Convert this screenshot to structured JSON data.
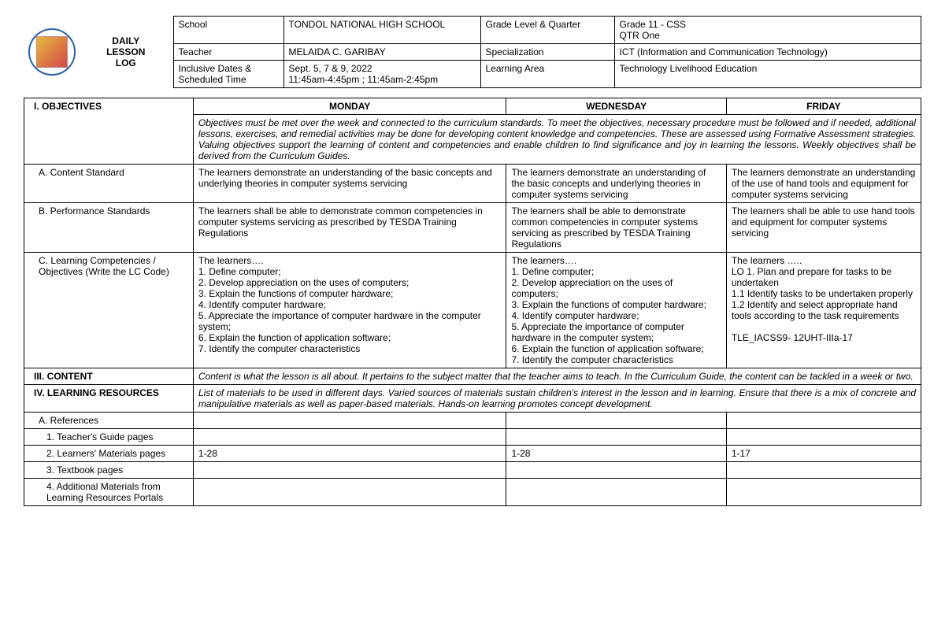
{
  "header": {
    "dll_line1": "DAILY",
    "dll_line2": "LESSON",
    "dll_line3": "LOG",
    "rows": [
      {
        "l1": "School",
        "v1": "TONDOL NATIONAL HIGH SCHOOL",
        "l2": "Grade Level & Quarter",
        "v2": "Grade 11 - CSS\nQTR One"
      },
      {
        "l1": "Teacher",
        "v1": "MELAIDA C. GARIBAY",
        "l2": "Specialization",
        "v2": "ICT (Information and Communication Technology)"
      },
      {
        "l1": "Inclusive Dates & Scheduled Time",
        "v1": "Sept. 5, 7 & 9, 2022\n11:45am-4:45pm ; 11:45am-2:45pm",
        "l2": "Learning Area",
        "v2": "Technology Livelihood Education"
      }
    ]
  },
  "days": {
    "mon": "MONDAY",
    "wed": "WEDNESDAY",
    "fri": "FRIDAY"
  },
  "sections": {
    "objectives": {
      "label": "I.    OBJECTIVES",
      "note": "Objectives must be met over the week and connected to the curriculum standards. To meet the objectives, necessary procedure must be followed and if needed, additional lessons, exercises, and remedial activities may be done for developing content knowledge and competencies. These are assessed using Formative Assessment strategies. Valuing objectives support the learning of content and competencies and enable children to find significance and joy in learning the lessons. Weekly objectives shall be derived from the Curriculum Guides."
    },
    "contentStd": {
      "label": "A. Content Standard",
      "mon": "The learners demonstrate an understanding of the basic concepts and underlying theories in computer systems servicing",
      "wed": "The learners demonstrate an understanding of the basic concepts and underlying theories in computer systems servicing",
      "fri": "The learners demonstrate an understanding of the use of hand tools and equipment for computer systems servicing"
    },
    "perfStd": {
      "label": "B. Performance Standards",
      "mon": "The learners shall be able to demonstrate common competencies in computer systems servicing as prescribed by TESDA Training Regulations",
      "wed": "The learners shall be able to demonstrate common competencies in computer systems servicing as prescribed by TESDA Training Regulations",
      "fri": "The learners shall be able to use hand tools and equipment for computer systems servicing"
    },
    "learnComp": {
      "label": "C. Learning Competencies / Objectives (Write the LC Code)",
      "mon": "The learners….\n1. Define computer;\n2. Develop appreciation on the uses of computers;\n3. Explain the functions of computer hardware;\n4. Identify computer hardware;\n5. Appreciate the importance of computer hardware in the computer system;\n6. Explain the function of application software;\n7. Identify the computer characteristics",
      "wed": "The learners….\n1. Define computer;\n2. Develop appreciation on the uses of computers;\n3. Explain the functions of computer hardware;\n4. Identify computer hardware;\n5. Appreciate the importance of computer hardware in the computer system;\n6. Explain the function of application software;\n7. Identify the computer characteristics",
      "fri": "The learners …..\nLO 1. Plan and prepare for tasks to be undertaken\n1.1 Identify tasks to be undertaken properly\n1.2 Identify and select appropriate hand tools according to the task requirements\n\nTLE_IACSS9- 12UHT-IIIa-17"
    },
    "content": {
      "label": "III.   CONTENT",
      "note": "Content is what the lesson is all about. It pertains to the subject matter that the teacher aims to teach. In the Curriculum Guide, the content can be tackled in a week or two."
    },
    "resources": {
      "label": "IV.   LEARNING RESOURCES",
      "note": "List of materials to be used in different days. Varied sources of materials sustain children's interest in the lesson and in learning. Ensure that there is a mix of concrete and manipulative materials as well as paper-based materials. Hands-on learning promotes concept development."
    },
    "refs": {
      "label": "A. References"
    },
    "tg": {
      "label": "1. Teacher's Guide pages",
      "mon": "",
      "wed": "",
      "fri": ""
    },
    "lm": {
      "label": "2. Learners' Materials pages",
      "mon": "1-28",
      "wed": "1-28",
      "fri": "1-17"
    },
    "tb": {
      "label": "3. Textbook pages",
      "mon": "",
      "wed": "",
      "fri": ""
    },
    "am": {
      "label": "4. Additional Materials from Learning Resources Portals",
      "mon": "",
      "wed": "",
      "fri": ""
    }
  }
}
